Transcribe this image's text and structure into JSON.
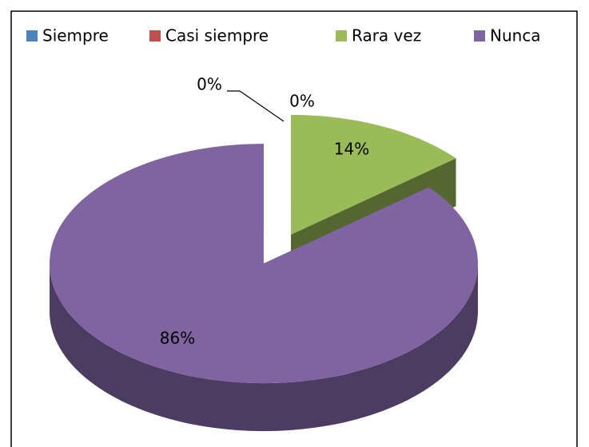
{
  "chart_data": {
    "type": "pie3d",
    "categories": [
      "Siempre",
      "Casi siempre",
      "Rara vez",
      "Nunca"
    ],
    "values": [
      0,
      0,
      14,
      86
    ],
    "value_labels": [
      "0%",
      "0%",
      "14%",
      "86%"
    ],
    "colors": [
      "#4f81bd",
      "#c0504d",
      "#9bbb59",
      "#8064a2"
    ],
    "legend": "top"
  }
}
